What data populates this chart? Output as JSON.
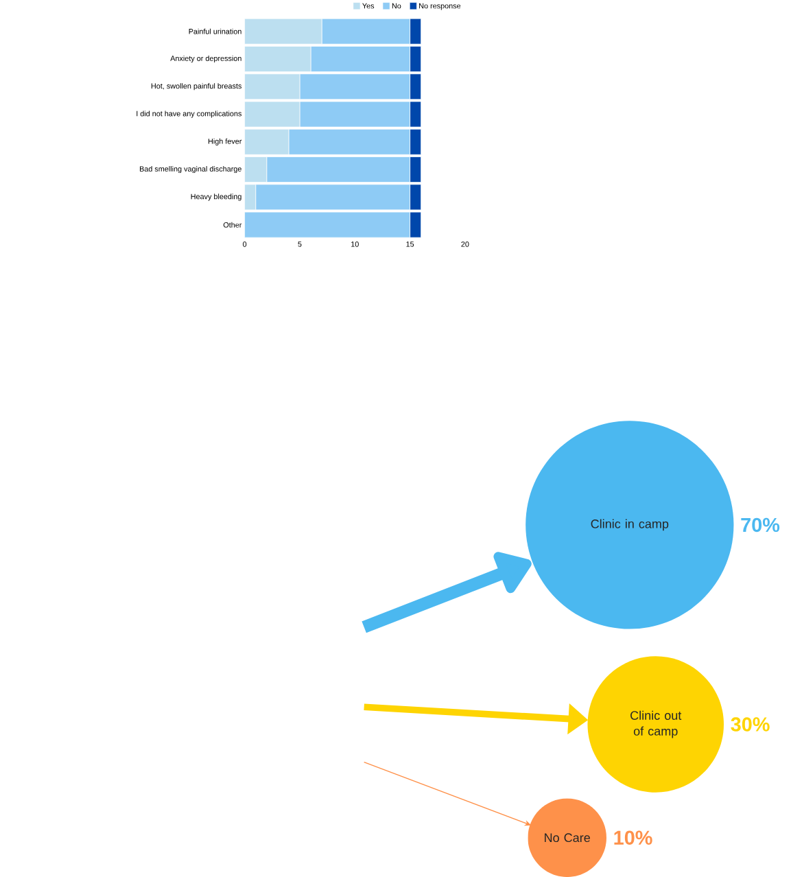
{
  "chart_data": [
    {
      "type": "bar",
      "orientation": "horizontal",
      "stacked": true,
      "legend": "top right",
      "categories": [
        "Painful urination",
        "Anxiety or depression",
        "Hot, swollen painful breasts",
        "I did not have any complications",
        "High fever",
        "Bad smelling vaginal discharge",
        "Heavy bleeding",
        "Other"
      ],
      "series": [
        {
          "name": "Yes",
          "color": "#bcdff0",
          "values": [
            7,
            6,
            5,
            5,
            4,
            2,
            1,
            0
          ]
        },
        {
          "name": "No",
          "color": "#8ecbf5",
          "values": [
            8,
            9,
            10,
            10,
            11,
            13,
            14,
            15
          ]
        },
        {
          "name": "No response",
          "color": "#0047ab",
          "values": [
            1,
            1,
            1,
            1,
            1,
            1,
            1,
            1
          ]
        }
      ],
      "xlim": [
        0,
        20
      ],
      "xticks": [
        0,
        5,
        10,
        15,
        20
      ]
    },
    {
      "type": "other",
      "categories": [
        "Clinic in camp",
        "Clinic out of camp",
        "No Care"
      ],
      "values": [
        70,
        30,
        10
      ],
      "colors": [
        "#4bb8f0",
        "#fed402",
        "#fe914a"
      ],
      "value_labels": [
        "70%",
        "30%",
        "10%"
      ]
    }
  ]
}
